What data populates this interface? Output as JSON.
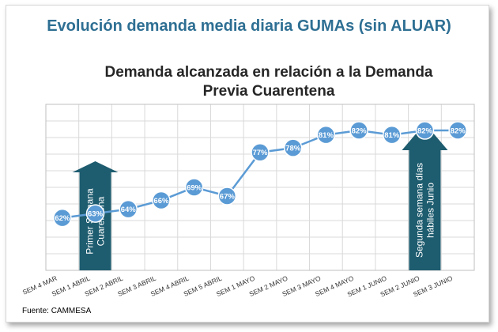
{
  "slide": {
    "title": "Evolución demanda media diaria GUMAs (sin ALUAR)",
    "source": "Fuente: CAMMESA"
  },
  "colors": {
    "line": "#5b9bd5",
    "callout": "#1e5c6f",
    "title": "#2e6f93"
  },
  "chart_data": {
    "type": "line",
    "title": "Demanda alcanzada en relación a la Demanda Previa Cuarentena",
    "title_lines": [
      "Demanda alcanzada en relación a la Demanda",
      "Previa Cuarentena"
    ],
    "categories": [
      "SEM 4 MAR",
      "SEM 1 ABRIL",
      "SEM 2 ABRIL",
      "SEM 3 ABRIL",
      "SEM 4 ABRIL",
      "SEM 5 ABRIL",
      "SEM 1 MAYO",
      "SEM 2 MAYO",
      "SEM 3 MAYO",
      "SEM 4 MAYO",
      "SEM 1 JUNIO",
      "SEM 2 JUNIO",
      "SEM 3 JUNIO"
    ],
    "series": [
      {
        "values": [
          62,
          63,
          64,
          66,
          69,
          67,
          77,
          78,
          81,
          82,
          81,
          82,
          82
        ],
        "labels": [
          "62%",
          "63%",
          "64%",
          "66%",
          "69%",
          "67%",
          "77%",
          "78%",
          "81%",
          "82%",
          "81%",
          "82%",
          "82%"
        ]
      }
    ],
    "ylim": [
      0,
      90
    ],
    "grid": true,
    "legend": "none",
    "annotations": [
      {
        "text_lines": [
          "Primer Semana",
          "Cuarentena"
        ],
        "category_index": 1,
        "direction": "up"
      },
      {
        "text_lines": [
          "Segunda semana días",
          "hábiles Junio"
        ],
        "category_index": 11,
        "direction": "up"
      }
    ]
  }
}
